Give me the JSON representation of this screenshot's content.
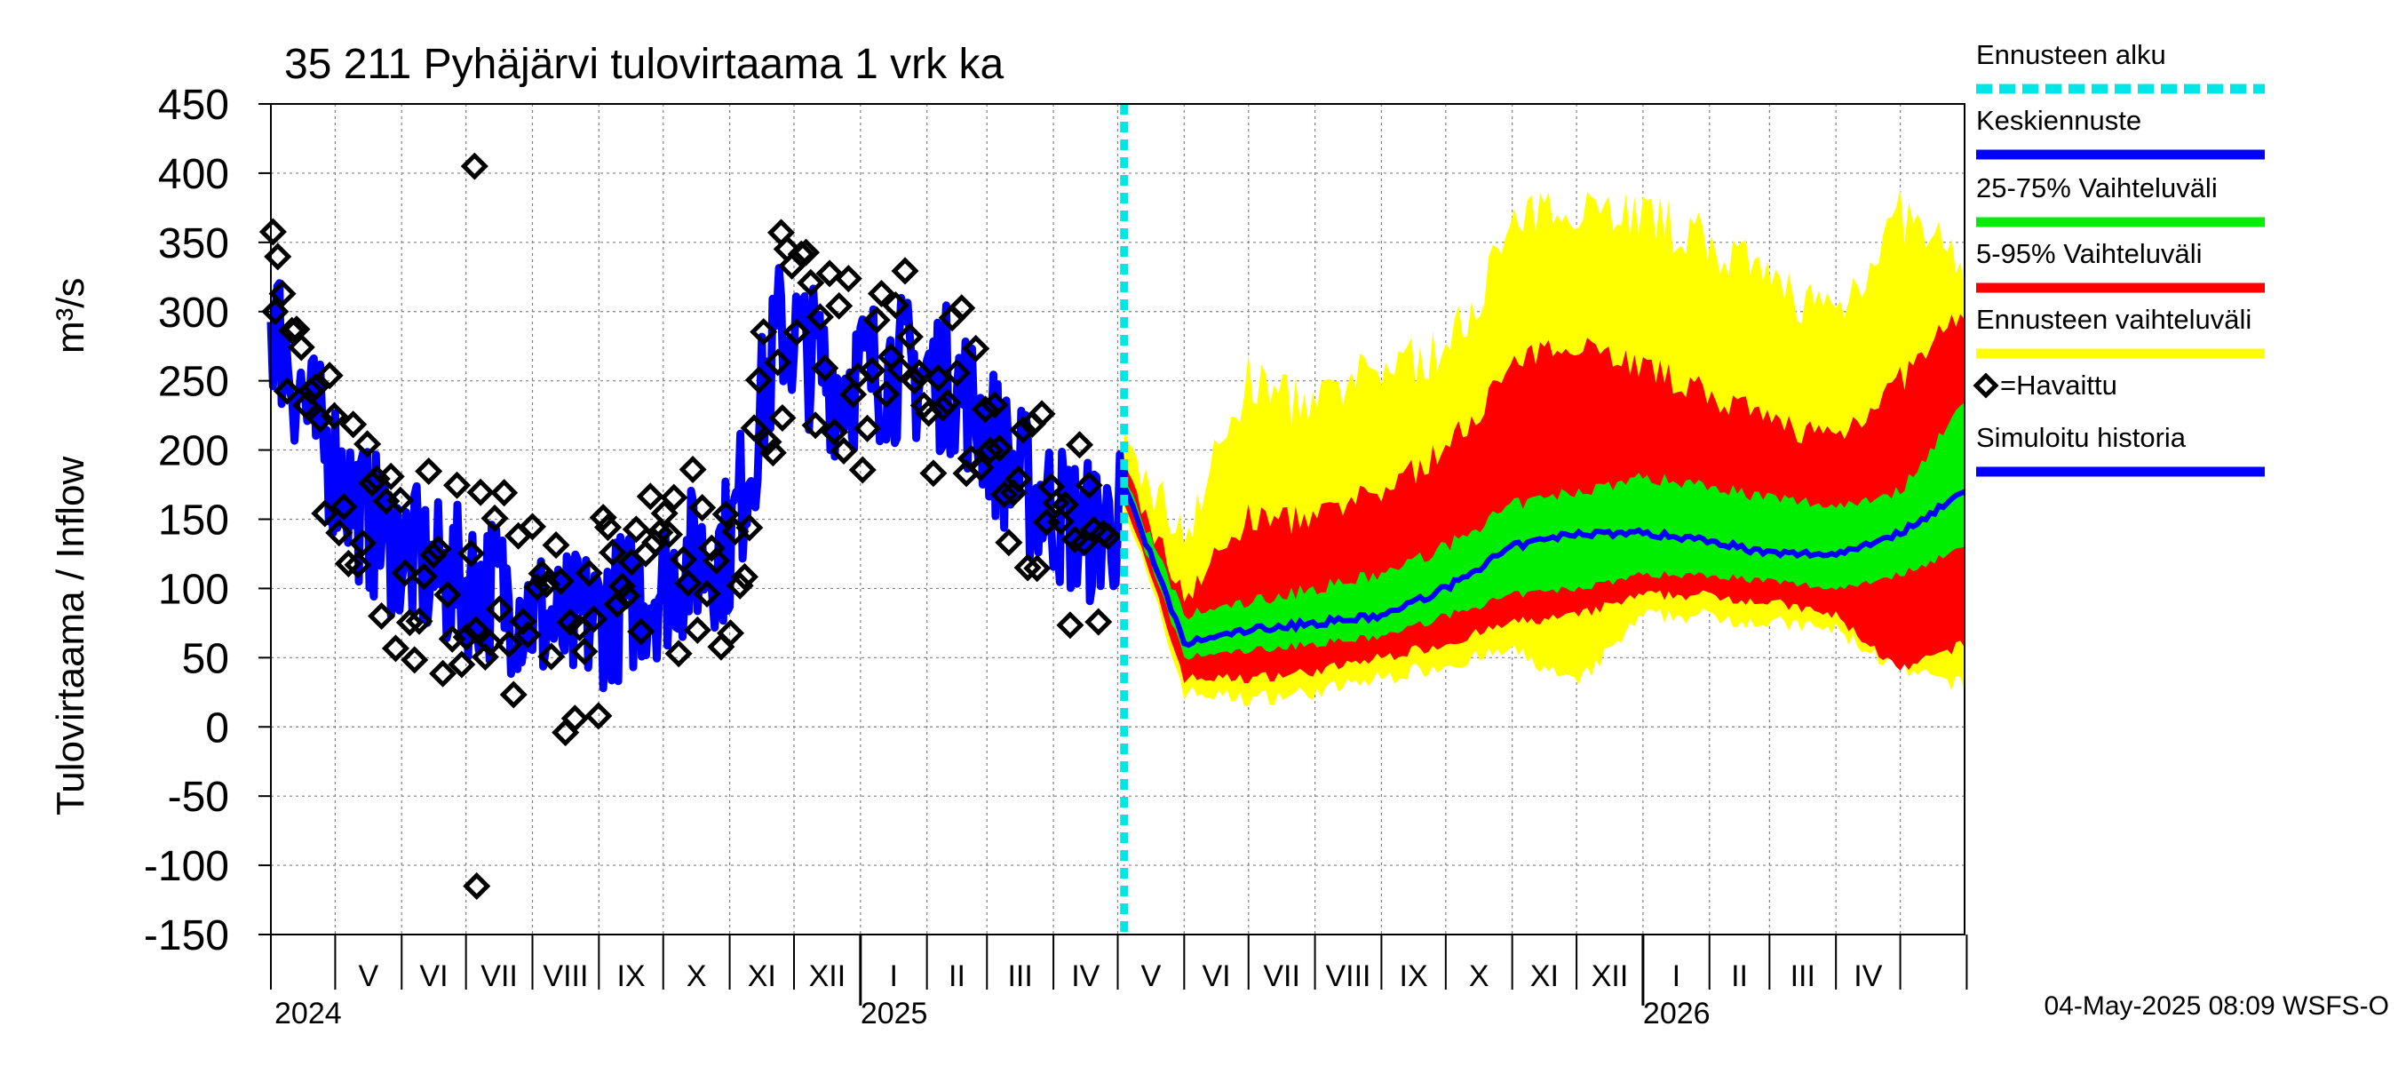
{
  "chart_data": {
    "type": "line",
    "title": "35 211 Pyhäjärvi tulovirtaama 1 vrk ka",
    "ylabel_fi": "Tulovirtaama / Inflow",
    "ylabel_unit": "m³/s",
    "ylim": [
      -150,
      450
    ],
    "yticks": [
      "450",
      "400",
      "350",
      "300",
      "250",
      "200",
      "150",
      "100",
      "50",
      "0",
      "-50",
      "-100",
      "-150"
    ],
    "grid": true,
    "x_range_months": [
      "2024-04-01",
      "2026-05-31"
    ],
    "forecast_start": "2025-05-04",
    "month_labels": [
      "V",
      "VI",
      "VII",
      "VIII",
      "IX",
      "X",
      "XI",
      "XII",
      "I",
      "II",
      "III",
      "IV",
      "V",
      "VI",
      "VII",
      "VIII",
      "IX",
      "X",
      "XI",
      "XII",
      "I",
      "II",
      "III",
      "IV"
    ],
    "year_labels": [
      "2024",
      "2025",
      "2026"
    ],
    "legend": [
      {
        "label": "Ennusteen alku",
        "color": "#00e5e5",
        "style": "dashed"
      },
      {
        "label": "Keskiennuste",
        "color": "#0000ff"
      },
      {
        "label": "25-75% Vaihteluväli",
        "color": "#00ee00"
      },
      {
        "label": "5-95% Vaihteluväli",
        "color": "#ff0000"
      },
      {
        "label": "Ennusteen vaihteluväli",
        "color": "#ffff00"
      },
      {
        "label": "=Havaittu",
        "color": "#000000",
        "marker": "diamond"
      },
      {
        "label": "Simuloitu historia",
        "color": "#0000ff"
      }
    ],
    "colors": {
      "yellow": "#ffff00",
      "red": "#ff0000",
      "green": "#00ee00",
      "blue": "#0000ff",
      "cyan": "#00e5e5",
      "black": "#000000"
    },
    "forecast_monthly": {
      "months": [
        "2025-05-04",
        "2025-06-01",
        "2025-07-01",
        "2025-08-01",
        "2025-09-01",
        "2025-10-01",
        "2025-11-01",
        "2025-12-01",
        "2026-01-01",
        "2026-02-01",
        "2026-03-01",
        "2026-04-01",
        "2026-05-01",
        "2026-05-31"
      ],
      "median": [
        175,
        60,
        70,
        75,
        80,
        100,
        130,
        140,
        140,
        135,
        125,
        125,
        140,
        170
      ],
      "p25": [
        170,
        50,
        55,
        60,
        65,
        80,
        95,
        100,
        110,
        110,
        105,
        100,
        110,
        130
      ],
      "p75": [
        180,
        80,
        90,
        100,
        110,
        130,
        160,
        170,
        180,
        175,
        165,
        160,
        170,
        235
      ],
      "p5": [
        165,
        35,
        35,
        40,
        50,
        60,
        75,
        80,
        95,
        95,
        90,
        80,
        40,
        60
      ],
      "p95": [
        185,
        95,
        150,
        150,
        170,
        200,
        260,
        280,
        260,
        240,
        220,
        210,
        250,
        300
      ],
      "min": [
        160,
        25,
        20,
        25,
        35,
        45,
        55,
        30,
        80,
        80,
        75,
        70,
        40,
        30
      ],
      "max": [
        200,
        140,
        250,
        230,
        260,
        270,
        360,
        380,
        370,
        350,
        320,
        300,
        370,
        330
      ]
    },
    "observed_highlights": [
      {
        "date": "2024-04-03",
        "value": 300
      },
      {
        "date": "2024-07-05",
        "value": 405
      },
      {
        "date": "2024-07-06",
        "value": -115
      },
      {
        "date": "2024-11-25",
        "value": 357
      }
    ],
    "footer": "04-May-2025 08:09 WSFS-O"
  }
}
